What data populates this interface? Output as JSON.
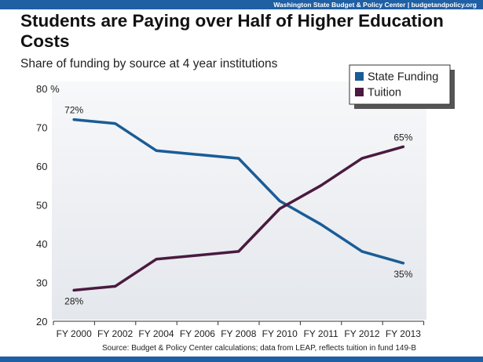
{
  "header": {
    "credit": "Washington State Budget & Policy Center | budgetandpolicy.org",
    "title": "Students are Paying over Half of Higher Education Costs",
    "subtitle": "Share of funding by source at 4 year institutions"
  },
  "footer": {
    "source": "Source: Budget & Policy Center calculations; data from LEAP, reflects tuition in fund 149-B"
  },
  "colors": {
    "accent_bar": "#1f5fa3",
    "state_funding": "#1a5c96",
    "tuition": "#4a1a3f",
    "panel": "#eef0f3"
  },
  "chart_data": {
    "type": "line",
    "title": "Students are Paying over Half of Higher Education Costs",
    "subtitle": "Share of funding by source at 4 year institutions",
    "xlabel": "",
    "ylabel": "",
    "y_unit": "%",
    "ylim": [
      20,
      80
    ],
    "yticks": [
      20,
      30,
      40,
      50,
      60,
      70,
      80
    ],
    "grid": false,
    "legend_position": "top-right",
    "categories": [
      "FY 2000",
      "FY 2002",
      "FY 2004",
      "FY 2006",
      "FY 2008",
      "FY 2010",
      "FY 2011",
      "FY 2012",
      "FY 2013"
    ],
    "series": [
      {
        "name": "State Funding",
        "color": "#1a5c96",
        "values": [
          72,
          71,
          64,
          63,
          62,
          51,
          45,
          38,
          35
        ],
        "labels": [
          {
            "index": 0,
            "text": "72%"
          },
          {
            "index": 8,
            "text": "35%"
          }
        ]
      },
      {
        "name": "Tuition",
        "color": "#4a1a3f",
        "values": [
          28,
          29,
          36,
          37,
          38,
          49,
          55,
          62,
          65
        ],
        "labels": [
          {
            "index": 0,
            "text": "28%"
          },
          {
            "index": 8,
            "text": "65%"
          }
        ]
      }
    ]
  }
}
